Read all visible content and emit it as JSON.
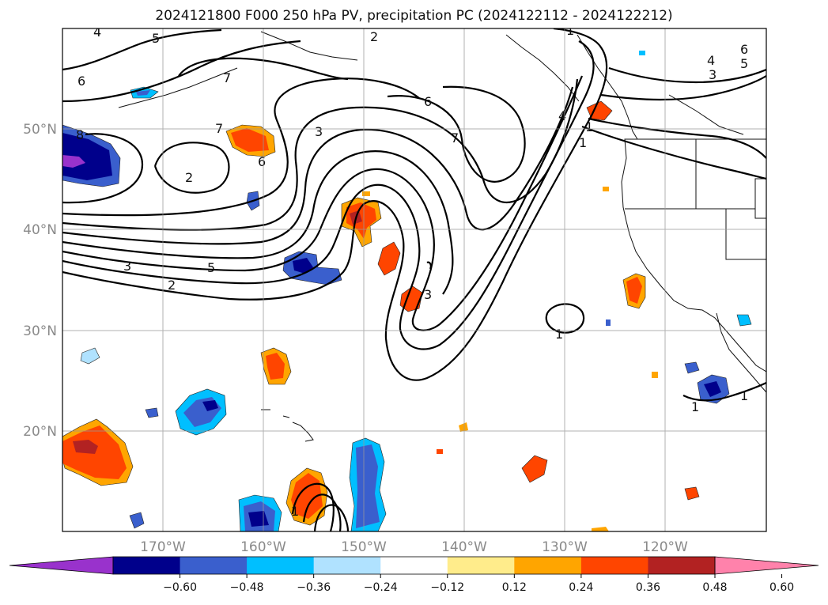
{
  "title": "2024121800 F000 250 hPa PV, precipitation PC (2024122112 - 2024122212)",
  "map": {
    "lat_labels": [
      "50°N",
      "40°N",
      "30°N",
      "20°N"
    ],
    "lon_labels": [
      "170°W",
      "160°W",
      "150°W",
      "140°W",
      "130°W",
      "120°W"
    ],
    "contour_labels": [
      "4",
      "5",
      "6",
      "7",
      "8",
      "6",
      "7",
      "3",
      "2",
      "3",
      "5",
      "6",
      "7",
      "4",
      "1",
      "1",
      "2",
      "3",
      "4",
      "5",
      "6",
      "3",
      "1",
      "1",
      "1",
      "1",
      "1",
      "2"
    ]
  },
  "colorbar": {
    "tick_labels": [
      "−0.60",
      "−0.48",
      "−0.36",
      "−0.24",
      "−0.12",
      "0.12",
      "0.24",
      "0.36",
      "0.48",
      "0.60"
    ],
    "colors": [
      "#9932cc",
      "#00008b",
      "#3a5fcd",
      "#00bfff",
      "#b0e2ff",
      "#ffffff",
      "#ffec8b",
      "#ffa500",
      "#ff4500",
      "#b22222",
      "#ff82ab"
    ]
  }
}
